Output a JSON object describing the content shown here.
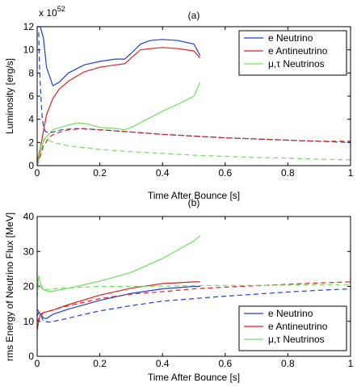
{
  "colors": {
    "e_neutrino": "#1f3fd6",
    "e_antineutrino": "#e01f1f",
    "mu_tau_neutrinos": "#6ee05a",
    "axes": "#000000"
  },
  "legend_labels": [
    "e Neutrino",
    "e Antineutrino",
    "μ,τ Neutrinos"
  ],
  "chart_data": [
    {
      "type": "line",
      "title": "(a)",
      "xlabel": "Time After Bounce [s]",
      "ylabel": "Luminosity [erg/s]",
      "y_multiplier_base": "x 10",
      "y_multiplier_exp": "52",
      "xlim": [
        0,
        1
      ],
      "ylim": [
        0,
        12
      ],
      "xticks": [
        0,
        0.2,
        0.4,
        0.6,
        0.8,
        1
      ],
      "xtick_labels": [
        "0",
        "0.2",
        "0.4",
        "0.6",
        "0.8",
        "1"
      ],
      "yticks": [
        0,
        2,
        4,
        6,
        8,
        10,
        12
      ],
      "ytick_labels": [
        "0",
        "2",
        "4",
        "6",
        "8",
        "10",
        "12"
      ],
      "legend_position": "top-right",
      "series": [
        {
          "name": "e Neutrino",
          "style": "solid",
          "color_key": "e_neutrino",
          "x": [
            0,
            0.01,
            0.02,
            0.03,
            0.05,
            0.07,
            0.1,
            0.15,
            0.2,
            0.25,
            0.28,
            0.3,
            0.33,
            0.36,
            0.4,
            0.45,
            0.5,
            0.52
          ],
          "y": [
            12,
            12,
            11,
            8.5,
            6.9,
            7.2,
            8.0,
            8.7,
            9.0,
            9.2,
            9.2,
            9.7,
            10.5,
            10.8,
            10.9,
            10.8,
            10.5,
            9.5
          ]
        },
        {
          "style": "solid",
          "color_key": "e_antineutrino",
          "x": [
            0,
            0.01,
            0.02,
            0.03,
            0.05,
            0.07,
            0.1,
            0.15,
            0.2,
            0.25,
            0.28,
            0.3,
            0.33,
            0.36,
            0.4,
            0.45,
            0.5,
            0.52
          ],
          "y": [
            0.3,
            1.5,
            3.0,
            4.4,
            5.8,
            6.6,
            7.3,
            8.1,
            8.5,
            8.7,
            8.8,
            9.3,
            10.0,
            10.1,
            10.2,
            10.1,
            9.9,
            9.3
          ]
        },
        {
          "style": "solid",
          "color_key": "mu_tau_neutrinos",
          "x": [
            0,
            0.01,
            0.02,
            0.05,
            0.1,
            0.13,
            0.16,
            0.2,
            0.25,
            0.28,
            0.3,
            0.35,
            0.4,
            0.45,
            0.5,
            0.52
          ],
          "y": [
            0,
            1.0,
            2.2,
            3.1,
            3.5,
            3.7,
            3.6,
            3.3,
            3.2,
            3.1,
            3.3,
            4.0,
            4.7,
            5.3,
            6.0,
            7.2
          ]
        },
        {
          "style": "dashed",
          "color_key": "e_neutrino",
          "x": [
            0.005,
            0.007,
            0.01,
            0.013,
            0.016,
            0.02,
            0.025,
            0.03,
            0.04,
            0.05,
            0.08,
            0.12,
            0.2,
            0.3,
            0.4,
            0.5,
            0.6,
            0.7,
            0.8,
            0.9,
            1.0
          ],
          "y": [
            11.5,
            9.0,
            7.0,
            5.5,
            4.2,
            3.4,
            3.0,
            2.9,
            2.85,
            2.9,
            3.1,
            3.2,
            3.1,
            2.9,
            2.7,
            2.55,
            2.4,
            2.3,
            2.2,
            2.1,
            2.0
          ]
        },
        {
          "style": "dashed",
          "color_key": "e_antineutrino",
          "x": [
            0,
            0.02,
            0.04,
            0.06,
            0.1,
            0.15,
            0.2,
            0.3,
            0.4,
            0.5,
            0.6,
            0.7,
            0.8,
            0.9,
            1.0
          ],
          "y": [
            0,
            1.7,
            2.5,
            2.8,
            3.1,
            3.2,
            3.1,
            2.9,
            2.7,
            2.55,
            2.4,
            2.3,
            2.2,
            2.1,
            2.1
          ]
        },
        {
          "style": "dashed",
          "color_key": "mu_tau_neutrinos",
          "x": [
            0,
            0.015,
            0.03,
            0.05,
            0.1,
            0.2,
            0.3,
            0.4,
            0.5,
            0.6,
            0.7,
            0.8,
            0.9,
            1.0
          ],
          "y": [
            0,
            2.1,
            2.3,
            2.0,
            1.7,
            1.4,
            1.2,
            1.05,
            0.9,
            0.8,
            0.7,
            0.65,
            0.55,
            0.5
          ]
        }
      ]
    },
    {
      "type": "line",
      "title": "(b)",
      "xlabel": "Time After Bounce [s]",
      "ylabel": "rms Energy of Neutrino Flux [MeV]",
      "xlim": [
        0,
        1
      ],
      "ylim": [
        0,
        40
      ],
      "xticks": [
        0,
        0.2,
        0.4,
        0.6,
        0.8,
        1
      ],
      "xtick_labels": [
        "0",
        "0.2",
        "0.4",
        "0.6",
        "0.8",
        "1"
      ],
      "yticks": [
        0,
        10,
        20,
        30,
        40
      ],
      "ytick_labels": [
        "0",
        "10",
        "20",
        "30",
        "40"
      ],
      "legend_position": "bottom-right",
      "series": [
        {
          "name": "e Neutrino",
          "style": "solid",
          "color_key": "e_neutrino",
          "x": [
            0,
            0.005,
            0.01,
            0.02,
            0.03,
            0.05,
            0.1,
            0.2,
            0.3,
            0.4,
            0.5,
            0.52
          ],
          "y": [
            11.5,
            12.5,
            12.2,
            11.0,
            10.8,
            12.0,
            13.5,
            16.0,
            18.0,
            19.3,
            20.0,
            20.0
          ]
        },
        {
          "style": "solid",
          "color_key": "e_antineutrino",
          "x": [
            0,
            0.005,
            0.01,
            0.02,
            0.05,
            0.1,
            0.2,
            0.3,
            0.4,
            0.5,
            0.52
          ],
          "y": [
            7.5,
            10.0,
            12.0,
            12.5,
            13.2,
            14.8,
            17.5,
            19.5,
            20.8,
            21.3,
            21.3
          ]
        },
        {
          "style": "solid",
          "color_key": "mu_tau_neutrinos",
          "x": [
            0,
            0.005,
            0.01,
            0.02,
            0.04,
            0.06,
            0.1,
            0.2,
            0.3,
            0.4,
            0.45,
            0.5,
            0.52
          ],
          "y": [
            19.0,
            23.0,
            21.0,
            19.0,
            18.5,
            18.8,
            19.5,
            21.5,
            24.0,
            28.0,
            30.5,
            33.0,
            34.5
          ]
        },
        {
          "style": "dashed",
          "color_key": "e_neutrino",
          "x": [
            0,
            0.01,
            0.02,
            0.04,
            0.08,
            0.15,
            0.2,
            0.3,
            0.4,
            0.5,
            0.6,
            0.7,
            0.8,
            0.9,
            1.0
          ],
          "y": [
            13.5,
            12.0,
            10.0,
            9.8,
            10.5,
            12.0,
            13.0,
            14.5,
            15.8,
            16.5,
            17.2,
            17.8,
            18.4,
            18.9,
            19.3
          ]
        },
        {
          "style": "dashed",
          "color_key": "e_antineutrino",
          "x": [
            0,
            0.01,
            0.02,
            0.04,
            0.08,
            0.15,
            0.2,
            0.3,
            0.4,
            0.5,
            0.6,
            0.7,
            0.8,
            0.9,
            1.0
          ],
          "y": [
            10.0,
            11.5,
            12.5,
            13.0,
            14.0,
            15.5,
            16.5,
            17.8,
            18.5,
            19.3,
            19.8,
            20.2,
            20.6,
            21.0,
            21.3
          ]
        },
        {
          "style": "dashed",
          "color_key": "mu_tau_neutrinos",
          "x": [
            0,
            0.005,
            0.01,
            0.02,
            0.04,
            0.08,
            0.15,
            0.2,
            0.3,
            0.4,
            0.5,
            0.6,
            0.7,
            0.8,
            0.9,
            1.0
          ],
          "y": [
            17.0,
            21.0,
            20.0,
            19.0,
            19.2,
            19.5,
            19.8,
            20.0,
            20.0,
            20.1,
            20.2,
            20.3,
            20.3,
            20.4,
            20.5,
            20.5
          ]
        }
      ]
    }
  ]
}
